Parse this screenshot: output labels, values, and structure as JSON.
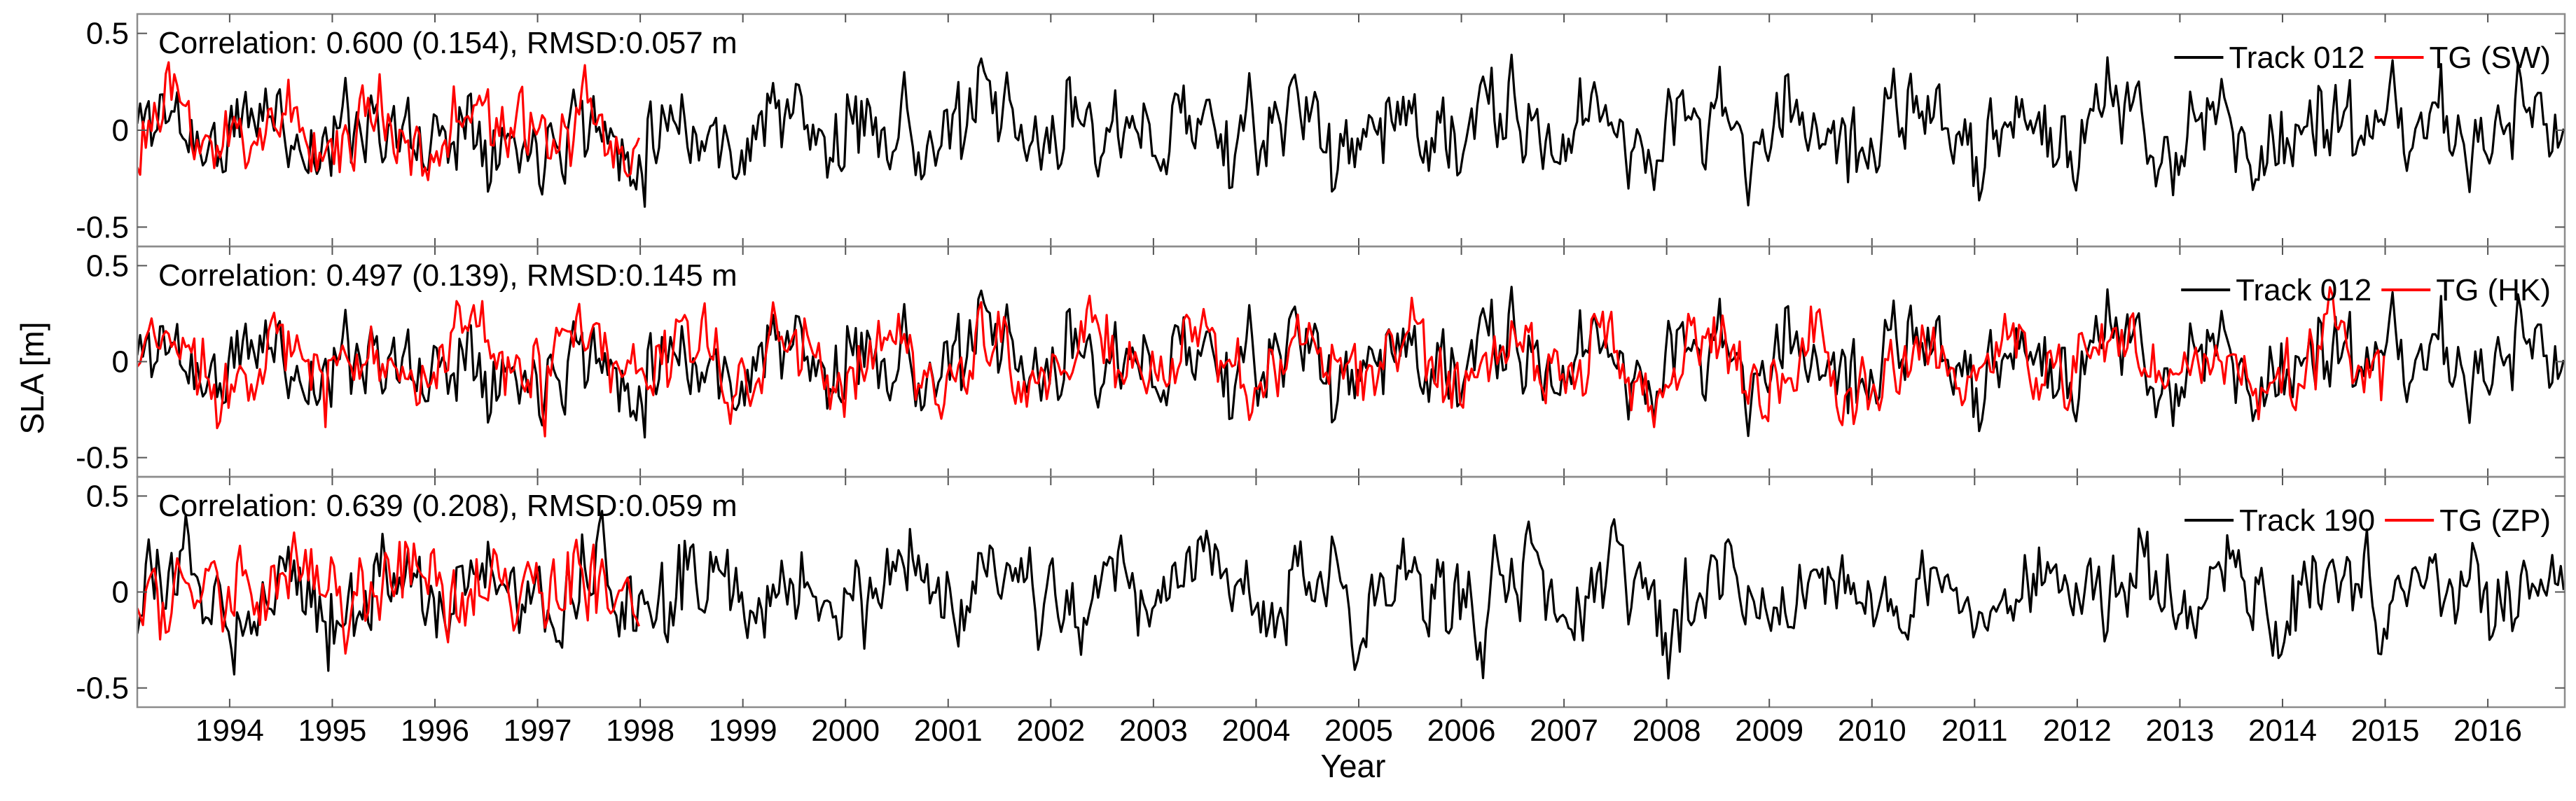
{
  "figure": {
    "xlabel": "Year",
    "ylabel": "SLA [m]"
  },
  "chart_data": [
    {
      "type": "line",
      "panel": "top",
      "annotation": "Correlation: 0.600 (0.154), RMSD:0.057 m",
      "xlim": [
        1993.1,
        2016.75
      ],
      "ylim": [
        -0.6,
        0.6
      ],
      "yticks": [
        -0.5,
        0,
        0.5
      ],
      "ytick_labels": [
        "-0.5",
        "0",
        "0.5"
      ],
      "legend": "top-right",
      "grid": false,
      "series": [
        {
          "name": "Track 012",
          "color": "#000000",
          "x_start": 1993.1,
          "x_end": 2016.75,
          "seed": 11,
          "amplitude": 0.17,
          "seasonal": 0.1,
          "phase": 0.1
        },
        {
          "name": "TG (SW)",
          "color": "#ff0000",
          "x_start": 1993.1,
          "x_end": 1998.0,
          "seed": 23,
          "amplitude": 0.15,
          "seasonal": 0.09,
          "phase": 0.2
        }
      ]
    },
    {
      "type": "line",
      "panel": "middle",
      "annotation": "Correlation: 0.497 (0.139), RMSD:0.145 m",
      "xlim": [
        1993.1,
        2016.75
      ],
      "ylim": [
        -0.6,
        0.6
      ],
      "yticks": [
        -0.5,
        0,
        0.5
      ],
      "ytick_labels": [
        "-0.5",
        "0",
        "0.5"
      ],
      "legend": "top-right",
      "grid": false,
      "series": [
        {
          "name": "Track 012",
          "color": "#000000",
          "x_start": 1993.1,
          "x_end": 2016.75,
          "seed": 11,
          "amplitude": 0.17,
          "seasonal": 0.1,
          "phase": 0.1
        },
        {
          "name": "TG (HK)",
          "color": "#ff0000",
          "x_start": 1993.1,
          "x_end": 2015.0,
          "seed": 37,
          "amplitude": 0.15,
          "seasonal": 0.11,
          "phase": 0.15
        }
      ]
    },
    {
      "type": "line",
      "panel": "bottom",
      "annotation": "Correlation: 0.639 (0.208), RMSD:0.059 m",
      "xlim": [
        1993.1,
        2016.75
      ],
      "ylim": [
        -0.6,
        0.6
      ],
      "yticks": [
        -0.5,
        0,
        0.5
      ],
      "ytick_labels": [
        "-0.5",
        "0",
        "0.5"
      ],
      "legend": "top-right",
      "grid": false,
      "series": [
        {
          "name": "Track 190",
          "color": "#000000",
          "x_start": 1993.1,
          "x_end": 2016.75,
          "seed": 53,
          "amplitude": 0.17,
          "seasonal": 0.1,
          "phase": 0.3
        },
        {
          "name": "TG (ZP)",
          "color": "#ff0000",
          "x_start": 1993.1,
          "x_end": 1998.0,
          "seed": 71,
          "amplitude": 0.17,
          "seasonal": 0.09,
          "phase": 0.35
        }
      ]
    }
  ],
  "xaxis": {
    "ticks": [
      1994,
      1995,
      1996,
      1997,
      1998,
      1999,
      2000,
      2001,
      2002,
      2003,
      2004,
      2005,
      2006,
      2007,
      2008,
      2009,
      2010,
      2011,
      2012,
      2013,
      2014,
      2015,
      2016
    ],
    "tick_labels": [
      "1994",
      "1995",
      "1996",
      "1997",
      "1998",
      "1999",
      "2000",
      "2001",
      "2002",
      "2003",
      "2004",
      "2005",
      "2006",
      "2007",
      "2008",
      "2009",
      "2010",
      "2011",
      "2012",
      "2013",
      "2014",
      "2015",
      "2016"
    ]
  }
}
